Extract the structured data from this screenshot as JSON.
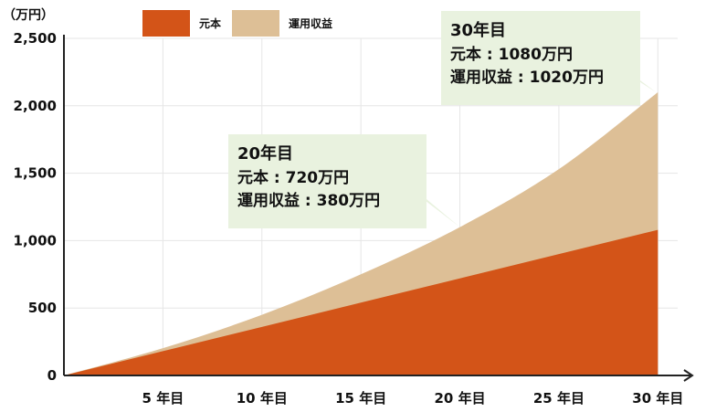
{
  "chart_data": {
    "type": "area",
    "stacked": true,
    "unit": "（万円）",
    "categories": [
      "5 年目",
      "10 年目",
      "15 年目",
      "20 年目",
      "25 年目",
      "30 年目"
    ],
    "x": [
      0,
      5,
      10,
      15,
      20,
      25,
      30
    ],
    "series": [
      {
        "name": "元本",
        "color": "#d35418",
        "values": [
          0,
          180,
          360,
          540,
          720,
          900,
          1080
        ]
      },
      {
        "name": "運用収益",
        "color": "#ddbf96",
        "values": [
          0,
          22,
          90,
          210,
          380,
          630,
          1020
        ]
      }
    ],
    "ylim": [
      0,
      2500
    ],
    "xlim": [
      0,
      31
    ],
    "yticks": [
      {
        "value": 0,
        "label": "0"
      },
      {
        "value": 500,
        "label": "500"
      },
      {
        "value": 1000,
        "label": "1,000"
      },
      {
        "value": 1500,
        "label": "1,500"
      },
      {
        "value": 2000,
        "label": "2,000"
      },
      {
        "value": 2500,
        "label": "2,500"
      }
    ],
    "grid": true,
    "legend": "top",
    "annotations": [
      {
        "x": 20,
        "title": "20年目",
        "lines": [
          "元本 : 720万円",
          "運用収益 : 380万円"
        ],
        "background": "#e9f2df"
      },
      {
        "x": 30,
        "title": "30年目",
        "lines": [
          "元本 : 1080万円",
          "運用収益 : 1020万円"
        ],
        "background": "#e9f2df"
      }
    ]
  }
}
